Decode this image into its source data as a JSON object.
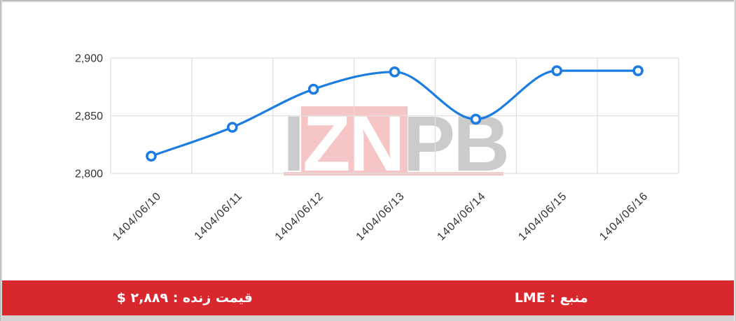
{
  "colors": {
    "accent_red": "#d9282d",
    "line_blue": "#1b7ce2",
    "watermark_pink": "#f6c6c6",
    "watermark_gray": "#cbcbcb",
    "grid_gray": "#e0e0e0",
    "axis_text": "#333333",
    "bottom_strip_gray": "#d2d2d2"
  },
  "chart_data": {
    "type": "line",
    "title": "",
    "categories": [
      "1404/06/10",
      "1404/06/11",
      "1404/06/12",
      "1404/06/13",
      "1404/06/14",
      "1404/06/15",
      "1404/06/16"
    ],
    "values": [
      2815,
      2840,
      2873,
      2888,
      2847,
      2889,
      2889
    ],
    "xlabel": "",
    "ylabel": "",
    "ylim": [
      2800,
      2900
    ],
    "yticks": [
      2800,
      2850,
      2900
    ],
    "ytick_labels": [
      "2,800",
      "2,850",
      "2,900"
    ],
    "x_label_rotation": -45,
    "grid": true,
    "legend": false,
    "smooth": true,
    "marker_style": "open-circle"
  },
  "watermark": {
    "letter_i": "I",
    "letters_zn": "ZN",
    "letters_pb": "PB"
  },
  "footer": {
    "live_price": "قیمت زنده : ۲,۸۸۹ $",
    "source": "منبع : LME"
  }
}
